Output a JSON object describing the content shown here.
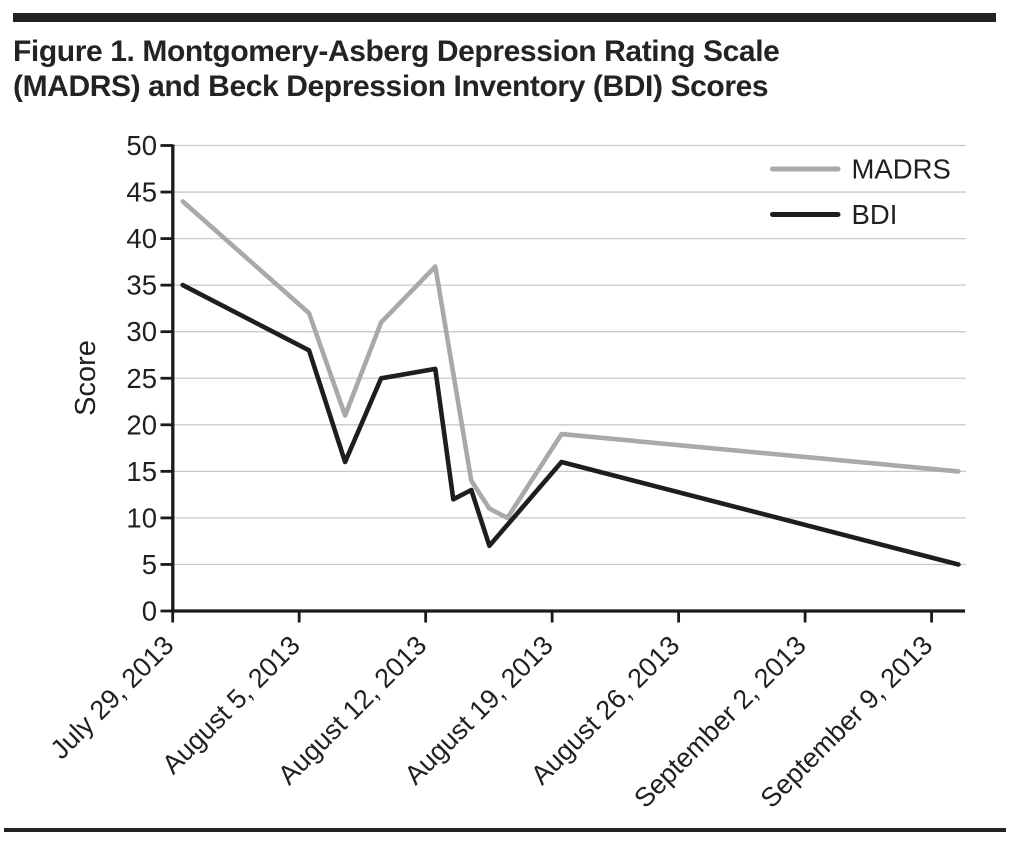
{
  "figure": {
    "title_lines": [
      "Figure 1. Montgomery-Asberg Depression Rating Scale",
      "(MADRS) and Beck Depression Inventory (BDI) Scores"
    ],
    "text_color": "#262223",
    "rule_color": "#262223"
  },
  "chart_data": {
    "type": "line",
    "title": "Figure 1. Montgomery-Asberg Depression Rating Scale (MADRS) and Beck Depression Inventory (BDI) Scores",
    "xlabel": "",
    "ylabel": "Score",
    "y_axis": {
      "min": 0,
      "max": 50,
      "tick_step": 5,
      "tick_labels": [
        "0",
        "5",
        "10",
        "15",
        "20",
        "25",
        "30",
        "35",
        "40",
        "45",
        "50"
      ]
    },
    "x_axis": {
      "unit": "days since July 29, 2013",
      "tick_day_offsets": [
        0,
        7,
        14,
        21,
        28,
        35,
        42
      ],
      "tick_labels": [
        "July 29, 2013",
        "August 5, 2013",
        "August 12, 2013",
        "August 19, 2013",
        "August 26, 2013",
        "September 2, 2013",
        "September 9, 2013"
      ],
      "label_rotation_deg": -45
    },
    "grid": "horizontal",
    "legend": {
      "position": "top-right",
      "entries": [
        {
          "label": "MADRS",
          "color": "#a9a9a9"
        },
        {
          "label": "BDI",
          "color": "#1f1d1d"
        }
      ]
    },
    "series": [
      {
        "name": "MADRS",
        "color": "#a9a9a9",
        "points": [
          {
            "day": 0,
            "value": 44
          },
          {
            "day": 7,
            "value": 32
          },
          {
            "day": 9,
            "value": 21
          },
          {
            "day": 11,
            "value": 31
          },
          {
            "day": 14,
            "value": 37
          },
          {
            "day": 16,
            "value": 14
          },
          {
            "day": 17,
            "value": 11
          },
          {
            "day": 18,
            "value": 10
          },
          {
            "day": 21,
            "value": 19
          },
          {
            "day": 43,
            "value": 15
          }
        ]
      },
      {
        "name": "BDI",
        "color": "#1f1d1d",
        "points": [
          {
            "day": 0,
            "value": 35
          },
          {
            "day": 7,
            "value": 28
          },
          {
            "day": 9,
            "value": 16
          },
          {
            "day": 11,
            "value": 25
          },
          {
            "day": 14,
            "value": 26
          },
          {
            "day": 15,
            "value": 12
          },
          {
            "day": 16,
            "value": 13
          },
          {
            "day": 17,
            "value": 7
          },
          {
            "day": 21,
            "value": 16
          },
          {
            "day": 43,
            "value": 5
          }
        ]
      }
    ],
    "style": {
      "grid_color": "#c9c9c9",
      "axis_color": "#1c1a1a",
      "tick_text_color": "#231f20"
    }
  }
}
